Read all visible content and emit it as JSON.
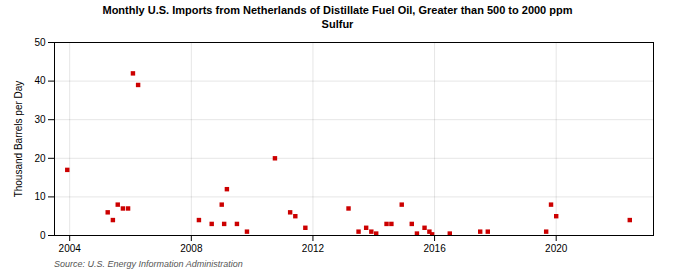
{
  "chart_data": {
    "type": "scatter",
    "title": "Monthly U.S. Imports from Netherlands of Distillate Fuel Oil, Greater than 500 to 2000 ppm\nSulfur",
    "ylabel": "Thousand Barrels per Day",
    "source": "Source: U.S. Energy Information Administration",
    "color": "#cc0000",
    "marker": "square",
    "grid": true,
    "xlim": [
      2003.5,
      2023.2
    ],
    "ylim": [
      0,
      50
    ],
    "xticks": [
      2004,
      2008,
      2012,
      2016,
      2020
    ],
    "yticks": [
      0,
      10,
      20,
      30,
      40,
      50
    ],
    "x": [
      2003.92,
      2005.25,
      2005.42,
      2005.58,
      2005.75,
      2005.92,
      2006.08,
      2006.25,
      2008.25,
      2008.67,
      2009.0,
      2009.08,
      2009.17,
      2009.5,
      2009.83,
      2010.75,
      2011.25,
      2011.42,
      2011.75,
      2013.17,
      2013.5,
      2013.75,
      2013.92,
      2014.08,
      2014.42,
      2014.58,
      2014.92,
      2015.25,
      2015.42,
      2015.67,
      2015.83,
      2015.92,
      2016.5,
      2017.5,
      2017.75,
      2019.67,
      2019.83,
      2020.0,
      2022.42
    ],
    "values": [
      17,
      6,
      4,
      8,
      7,
      7,
      42,
      39,
      4,
      3,
      8,
      3,
      12,
      3,
      1,
      20,
      6,
      5,
      2,
      7,
      1,
      2,
      1,
      0.5,
      3,
      3,
      8,
      3,
      0.5,
      2,
      1,
      0.3,
      0.5,
      1,
      1,
      1,
      8,
      5,
      4
    ]
  }
}
